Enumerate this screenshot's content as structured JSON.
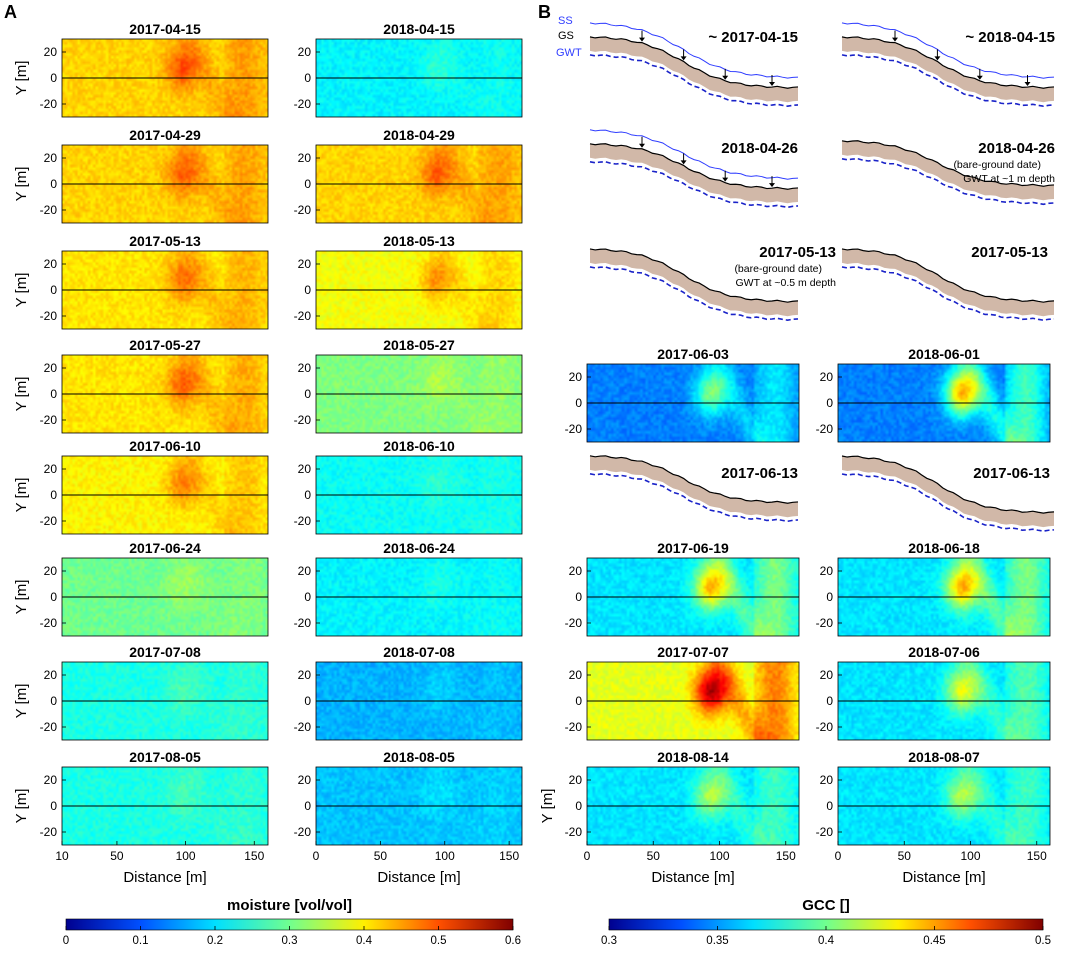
{
  "panel_labels": [
    "A",
    "B"
  ],
  "chart_data": [
    {
      "type": "heatmap",
      "panel": "A",
      "quantity": "moisture",
      "xlabel": "Distance [m]",
      "ylabel": "Y [m]",
      "xlim": [
        10,
        160
      ],
      "ylim": [
        -30,
        30
      ],
      "xticks": [
        10,
        50,
        100,
        150
      ],
      "xticks_right_col": [
        0,
        50,
        100,
        150
      ],
      "yticks": [
        20,
        0,
        -20
      ],
      "colorbar": {
        "label": "moisture [vol/vol]",
        "range": [
          0,
          0.6
        ],
        "ticks": [
          "0",
          "0.1",
          "0.2",
          "0.3",
          "0.4",
          "0.5",
          "0.6"
        ],
        "colors": [
          "#00008f",
          "#0050ff",
          "#00dfff",
          "#70ff8f",
          "#ffef00",
          "#ff5000",
          "#800000"
        ]
      },
      "maps": [
        {
          "title": "2017-04-15",
          "mean": 0.4,
          "hot": 0.48
        },
        {
          "title": "2018-04-15",
          "mean": 0.22,
          "hot": 0.25
        },
        {
          "title": "2017-04-29",
          "mean": 0.4,
          "hot": 0.47
        },
        {
          "title": "2018-04-29",
          "mean": 0.4,
          "hot": 0.47
        },
        {
          "title": "2017-05-13",
          "mean": 0.39,
          "hot": 0.46
        },
        {
          "title": "2018-05-13",
          "mean": 0.37,
          "hot": 0.44
        },
        {
          "title": "2017-05-27",
          "mean": 0.39,
          "hot": 0.47
        },
        {
          "title": "2018-05-27",
          "mean": 0.3,
          "hot": 0.33
        },
        {
          "title": "2017-06-10",
          "mean": 0.38,
          "hot": 0.45
        },
        {
          "title": "2018-06-10",
          "mean": 0.23,
          "hot": 0.25
        },
        {
          "title": "2017-06-24",
          "mean": 0.29,
          "hot": 0.32
        },
        {
          "title": "2018-06-24",
          "mean": 0.22,
          "hot": 0.24
        },
        {
          "title": "2017-07-08",
          "mean": 0.24,
          "hot": 0.27
        },
        {
          "title": "2018-07-08",
          "mean": 0.18,
          "hot": 0.2
        },
        {
          "title": "2017-08-05",
          "mean": 0.24,
          "hot": 0.27
        },
        {
          "title": "2018-08-05",
          "mean": 0.19,
          "hot": 0.21
        }
      ]
    },
    {
      "type": "heatmap",
      "panel": "B",
      "quantity": "GCC",
      "xlabel": "Distance [m]",
      "ylabel": "Y [m]",
      "xlim": [
        0,
        160
      ],
      "ylim": [
        -30,
        30
      ],
      "xticks": [
        0,
        50,
        100,
        150
      ],
      "yticks": [
        20,
        0,
        -20
      ],
      "colorbar": {
        "label": "GCC []",
        "range": [
          0.3,
          0.5
        ],
        "ticks": [
          "0.3",
          "0.35",
          "0.4",
          "0.45",
          "0.5"
        ],
        "colors": [
          "#00008f",
          "#0050ff",
          "#00dfff",
          "#70ff8f",
          "#ffef00",
          "#ff5000",
          "#800000"
        ]
      },
      "maps": [
        {
          "title": "2017-06-03",
          "mean": 0.35,
          "hot": 0.4
        },
        {
          "title": "2018-06-01",
          "mean": 0.35,
          "hot": 0.44
        },
        {
          "title": "2017-06-19",
          "mean": 0.37,
          "hot": 0.44
        },
        {
          "title": "2018-06-18",
          "mean": 0.37,
          "hot": 0.44
        },
        {
          "title": "2017-07-07",
          "mean": 0.42,
          "hot": 0.49
        },
        {
          "title": "2018-07-06",
          "mean": 0.37,
          "hot": 0.42
        },
        {
          "title": "2018-08-14",
          "mean": 0.37,
          "hot": 0.41
        },
        {
          "title": "2018-08-07",
          "mean": 0.37,
          "hot": 0.41
        }
      ]
    },
    {
      "type": "line",
      "panel": "B",
      "description_free": true,
      "legend": [
        "SS",
        "GS",
        "GWT"
      ],
      "profiles": [
        {
          "label": "~ 2017-04-15",
          "note": "",
          "has_ss": true
        },
        {
          "label": "~ 2018-04-15",
          "note": "",
          "has_ss": true
        },
        {
          "label": "2018-04-26",
          "note": "",
          "has_ss": true
        },
        {
          "label": "2018-04-26",
          "note1": "(bare-ground date)",
          "note2": "GWT at ~1 m depth",
          "has_ss": false
        },
        {
          "label": "2017-05-13",
          "note1": "(bare-ground date)",
          "note2": "GWT at ~0.5 m depth",
          "has_ss": false
        },
        {
          "label": "2017-05-13",
          "note": "",
          "has_ss": false
        },
        {
          "label": "2017-06-13",
          "note": "",
          "has_ss": false
        },
        {
          "label": "2017-06-13",
          "note": "",
          "has_ss": false
        }
      ]
    }
  ]
}
